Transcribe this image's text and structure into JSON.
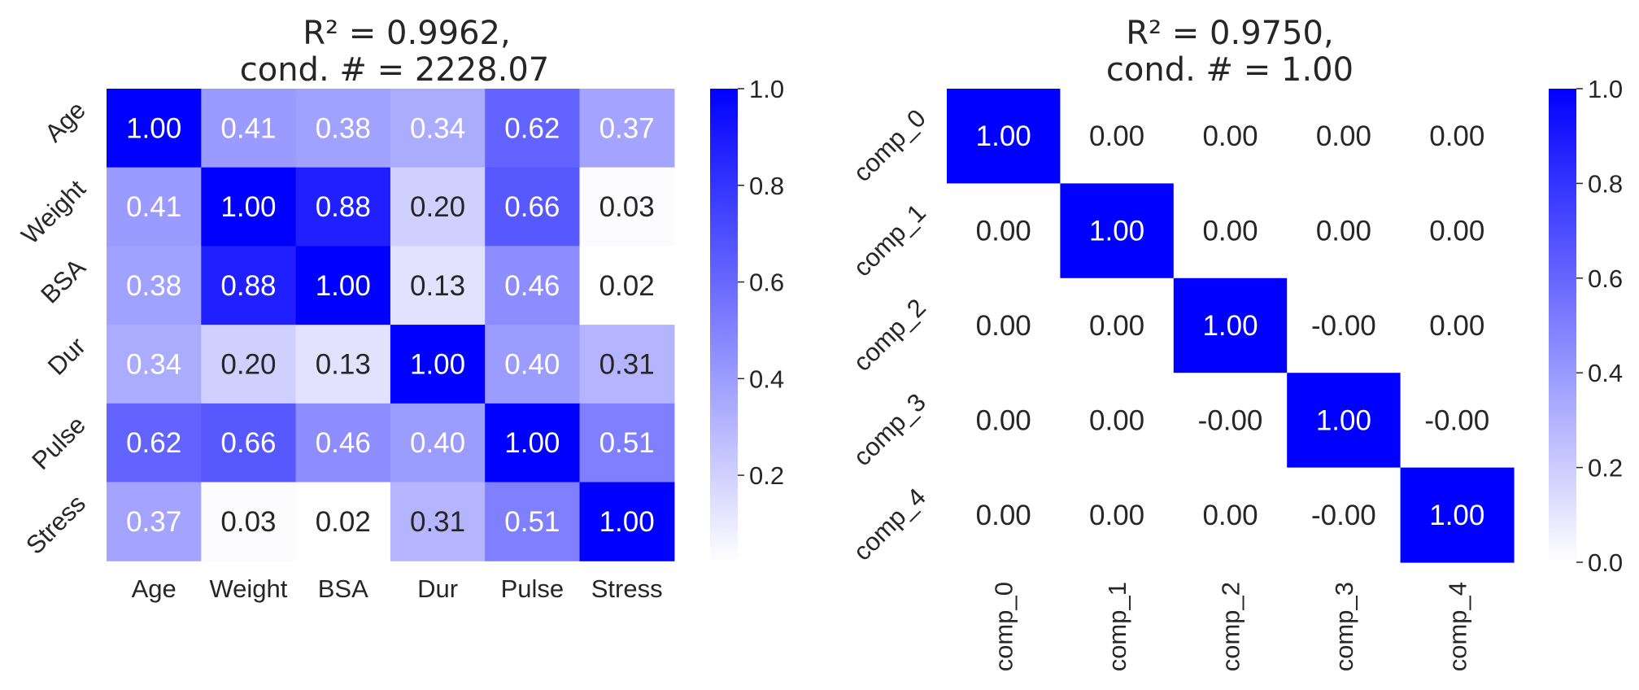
{
  "chart_data": [
    {
      "type": "heatmap",
      "title_line1": "R² = 0.9962,",
      "title_line2": "cond. # = 2228.07",
      "x_categories": [
        "Age",
        "Weight",
        "BSA",
        "Dur",
        "Pulse",
        "Stress"
      ],
      "y_categories": [
        "Age",
        "Weight",
        "BSA",
        "Dur",
        "Pulse",
        "Stress"
      ],
      "values": [
        [
          1.0,
          0.41,
          0.38,
          0.34,
          0.62,
          0.37
        ],
        [
          0.41,
          1.0,
          0.88,
          0.2,
          0.66,
          0.03
        ],
        [
          0.38,
          0.88,
          1.0,
          0.13,
          0.46,
          0.02
        ],
        [
          0.34,
          0.2,
          0.13,
          1.0,
          0.4,
          0.31
        ],
        [
          0.62,
          0.66,
          0.46,
          0.4,
          1.0,
          0.51
        ],
        [
          0.37,
          0.03,
          0.02,
          0.31,
          0.51,
          1.0
        ]
      ],
      "cell_labels": [
        [
          "1.00",
          "0.41",
          "0.38",
          "0.34",
          "0.62",
          "0.37"
        ],
        [
          "0.41",
          "1.00",
          "0.88",
          "0.20",
          "0.66",
          "0.03"
        ],
        [
          "0.38",
          "0.88",
          "1.00",
          "0.13",
          "0.46",
          "0.02"
        ],
        [
          "0.34",
          "0.20",
          "0.13",
          "1.00",
          "0.40",
          "0.31"
        ],
        [
          "0.62",
          "0.66",
          "0.46",
          "0.40",
          "1.00",
          "0.51"
        ],
        [
          "0.37",
          "0.03",
          "0.02",
          "0.31",
          "0.51",
          "1.00"
        ]
      ],
      "vmin": 0.02,
      "vmax": 1.0,
      "colorbar_ticks": [
        "0.2",
        "0.4",
        "0.6",
        "0.8",
        "1.0"
      ],
      "x_tick_rotation": "horizontal",
      "y_tick_rotation": "diagonal"
    },
    {
      "type": "heatmap",
      "title_line1": "R² = 0.9750,",
      "title_line2": "cond. # = 1.00",
      "x_categories": [
        "comp_0",
        "comp_1",
        "comp_2",
        "comp_3",
        "comp_4"
      ],
      "y_categories": [
        "comp_0",
        "comp_1",
        "comp_2",
        "comp_3",
        "comp_4"
      ],
      "values": [
        [
          1.0,
          0.0,
          0.0,
          0.0,
          0.0
        ],
        [
          0.0,
          1.0,
          0.0,
          0.0,
          0.0
        ],
        [
          0.0,
          0.0,
          1.0,
          -0.0,
          0.0
        ],
        [
          0.0,
          0.0,
          -0.0,
          1.0,
          -0.0
        ],
        [
          0.0,
          0.0,
          0.0,
          -0.0,
          1.0
        ]
      ],
      "cell_labels": [
        [
          "1.00",
          "0.00",
          "0.00",
          "0.00",
          "0.00"
        ],
        [
          "0.00",
          "1.00",
          "0.00",
          "0.00",
          "0.00"
        ],
        [
          "0.00",
          "0.00",
          "1.00",
          "-0.00",
          "0.00"
        ],
        [
          "0.00",
          "0.00",
          "-0.00",
          "1.00",
          "-0.00"
        ],
        [
          "0.00",
          "0.00",
          "0.00",
          "-0.00",
          "1.00"
        ]
      ],
      "vmin": 0.0,
      "vmax": 1.0,
      "colorbar_ticks": [
        "0.0",
        "0.2",
        "0.4",
        "0.6",
        "0.8",
        "1.0"
      ],
      "x_tick_rotation": "vertical",
      "y_tick_rotation": "diagonal"
    }
  ],
  "colors": {
    "low": "#ffffff",
    "high": "#0000ff",
    "text_dark": "#262626",
    "text_light": "#ffffff"
  }
}
